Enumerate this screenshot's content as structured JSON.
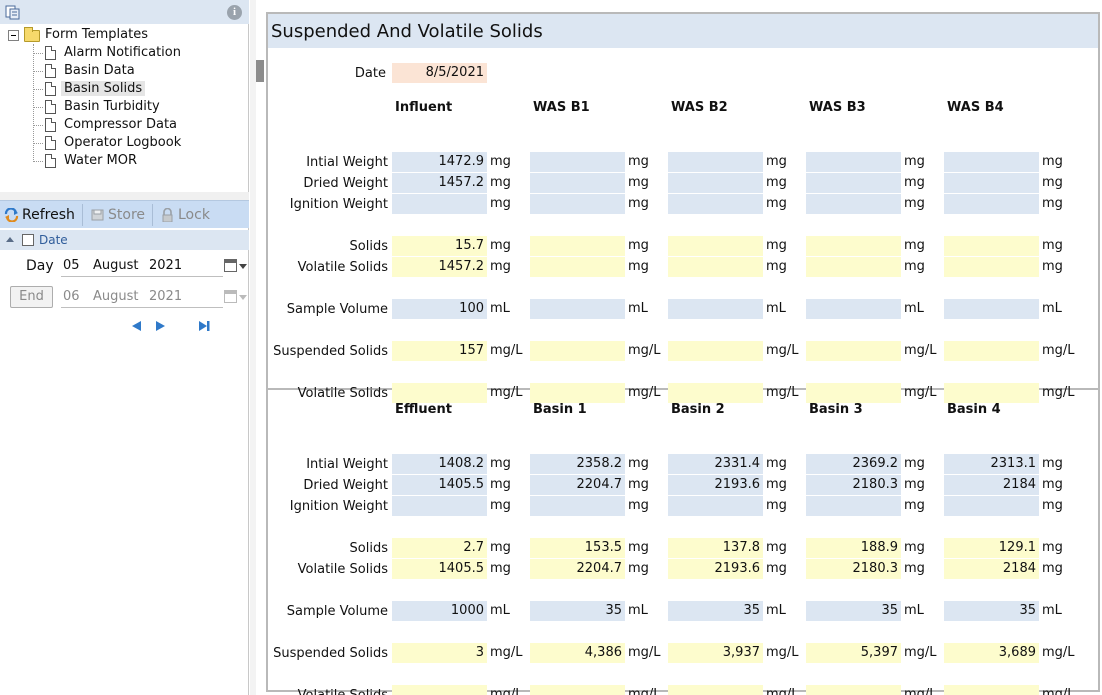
{
  "tree": {
    "root_label": "Form Templates",
    "items": [
      {
        "label": "Alarm Notification",
        "selected": false
      },
      {
        "label": "Basin Data",
        "selected": false
      },
      {
        "label": "Basin Solids",
        "selected": true
      },
      {
        "label": "Basin Turbidity",
        "selected": false
      },
      {
        "label": "Compressor Data",
        "selected": false
      },
      {
        "label": "Operator Logbook",
        "selected": false
      },
      {
        "label": "Water MOR",
        "selected": false
      }
    ]
  },
  "toolbar": {
    "refresh": "Refresh",
    "store": "Store",
    "lock": "Lock"
  },
  "date_panel": {
    "header": "Date",
    "day_label": "Day",
    "end_label": "End",
    "day": {
      "d": "05",
      "m": "August",
      "y": "2021"
    },
    "end": {
      "d": "06",
      "m": "August",
      "y": "2021"
    }
  },
  "form": {
    "title": "Suspended And Volatile Solids",
    "date_label": "Date",
    "date_value": "8/5/2021",
    "row_labels": {
      "initial": "Intial Weight",
      "dried": "Dried Weight",
      "ignition": "Ignition Weight",
      "solids": "Solids",
      "volatile": "Volatile Solids",
      "sample_volume": "Sample Volume",
      "suspended_solids": "Suspended Solids",
      "volatile_solids": "Volatile Solids"
    },
    "units": {
      "mg": "mg",
      "ml": "mL",
      "mgl": "mg/L"
    },
    "section1": {
      "columns": [
        {
          "name": "Influent",
          "initial": "1472.9",
          "dried": "1457.2",
          "ignition": "",
          "solids": "15.7",
          "volatile": "1457.2",
          "sample_volume": "100",
          "suspended_solids": "157",
          "volatile_solids": ""
        },
        {
          "name": "WAS B1",
          "initial": "",
          "dried": "",
          "ignition": "",
          "solids": "",
          "volatile": "",
          "sample_volume": "",
          "suspended_solids": "",
          "volatile_solids": ""
        },
        {
          "name": "WAS B2",
          "initial": "",
          "dried": "",
          "ignition": "",
          "solids": "",
          "volatile": "",
          "sample_volume": "",
          "suspended_solids": "",
          "volatile_solids": ""
        },
        {
          "name": "WAS B3",
          "initial": "",
          "dried": "",
          "ignition": "",
          "solids": "",
          "volatile": "",
          "sample_volume": "",
          "suspended_solids": "",
          "volatile_solids": ""
        },
        {
          "name": "WAS B4",
          "initial": "",
          "dried": "",
          "ignition": "",
          "solids": "",
          "volatile": "",
          "sample_volume": "",
          "suspended_solids": "",
          "volatile_solids": ""
        }
      ]
    },
    "section2": {
      "columns": [
        {
          "name": "Effluent",
          "initial": "1408.2",
          "dried": "1405.5",
          "ignition": "",
          "solids": "2.7",
          "volatile": "1405.5",
          "sample_volume": "1000",
          "suspended_solids": "3",
          "volatile_solids": ""
        },
        {
          "name": "Basin 1",
          "initial": "2358.2",
          "dried": "2204.7",
          "ignition": "",
          "solids": "153.5",
          "volatile": "2204.7",
          "sample_volume": "35",
          "suspended_solids": "4,386",
          "volatile_solids": ""
        },
        {
          "name": "Basin 2",
          "initial": "2331.4",
          "dried": "2193.6",
          "ignition": "",
          "solids": "137.8",
          "volatile": "2193.6",
          "sample_volume": "35",
          "suspended_solids": "3,937",
          "volatile_solids": ""
        },
        {
          "name": "Basin 3",
          "initial": "2369.2",
          "dried": "2180.3",
          "ignition": "",
          "solids": "188.9",
          "volatile": "2180.3",
          "sample_volume": "35",
          "suspended_solids": "5,397",
          "volatile_solids": ""
        },
        {
          "name": "Basin 4",
          "initial": "2313.1",
          "dried": "2184",
          "ignition": "",
          "solids": "129.1",
          "volatile": "2184",
          "sample_volume": "35",
          "suspended_solids": "3,689",
          "volatile_solids": ""
        }
      ]
    }
  }
}
